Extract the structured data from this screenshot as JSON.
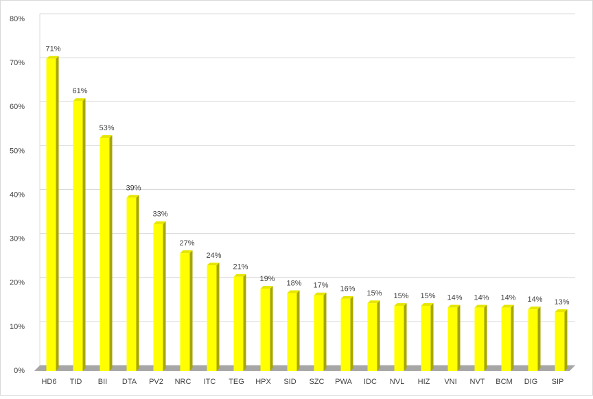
{
  "chart_data": {
    "type": "bar3d",
    "categories": [
      "HD6",
      "TID",
      "BII",
      "DTA",
      "PV2",
      "NRC",
      "ITC",
      "TEG",
      "HPX",
      "SID",
      "SZC",
      "PWA",
      "IDC",
      "NVL",
      "HIZ",
      "VNI",
      "NVT",
      "BCM",
      "DIG",
      "SIP"
    ],
    "values": [
      71.0,
      61.4,
      53.0,
      39.4,
      33.4,
      26.8,
      24.0,
      21.4,
      18.7,
      17.7,
      17.2,
      16.4,
      15.4,
      14.8,
      14.8,
      14.4,
      14.4,
      14.4,
      14.0,
      13.4
    ],
    "value_labels": [
      "71%",
      "61%",
      "53%",
      "39%",
      "33%",
      "27%",
      "24%",
      "21%",
      "19%",
      "18%",
      "17%",
      "16%",
      "15%",
      "15%",
      "15%",
      "14%",
      "14%",
      "14%",
      "14%",
      "13%"
    ],
    "color": "#ffff00",
    "ylim": [
      0,
      80
    ],
    "yticks": [
      {
        "value": 0,
        "label": "0%"
      },
      {
        "value": 10,
        "label": "10%"
      },
      {
        "value": 20,
        "label": "20%"
      },
      {
        "value": 30,
        "label": "30%"
      },
      {
        "value": 40,
        "label": "40%"
      },
      {
        "value": 50,
        "label": "50%"
      },
      {
        "value": 60,
        "label": "60%"
      },
      {
        "value": 70,
        "label": "70%"
      },
      {
        "value": 80,
        "label": "80%"
      }
    ],
    "grid": true
  }
}
